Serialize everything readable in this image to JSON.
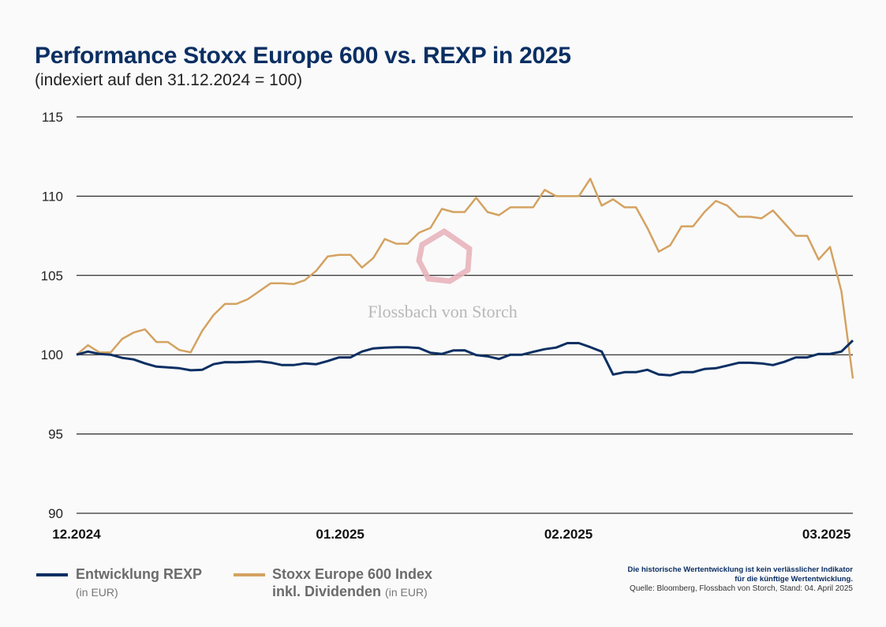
{
  "title": "Performance Stoxx Europe 600 vs. REXP in 2025",
  "subtitle": "(indexiert auf den 31.12.2024 = 100)",
  "watermark": "Flossbach von Storch",
  "colors": {
    "rexp": "#0b2f63",
    "stoxx": "#d4a261",
    "title": "#0b2f63",
    "watermark_logo": "#e8b4bb"
  },
  "chart_data": {
    "type": "line",
    "title": "Performance Stoxx Europe 600 vs. REXP in 2025",
    "subtitle": "(indexiert auf den 31.12.2024 = 100)",
    "ylim": [
      90,
      115
    ],
    "yticks": [
      "90",
      "95",
      "100",
      "105",
      "110",
      "115"
    ],
    "ytick_values": [
      90,
      95,
      100,
      105,
      110,
      115
    ],
    "xticks": [
      {
        "label": "12.2024",
        "index": 0
      },
      {
        "label": "01.2025",
        "index": 22.4
      },
      {
        "label": "02.2025",
        "index": 42.4
      },
      {
        "label": "03.2025",
        "index": 65
      }
    ],
    "grid": true,
    "legend_placement": "bottom",
    "series": [
      {
        "name": "Entwicklung REXP",
        "unit": "(in EUR)",
        "color": "#0b2f63",
        "values": [
          100.0,
          100.2,
          100.05,
          100.0,
          99.8,
          99.7,
          99.45,
          99.25,
          99.2,
          99.15,
          99.02,
          99.05,
          99.4,
          99.53,
          99.52,
          99.55,
          99.58,
          99.5,
          99.35,
          99.35,
          99.45,
          99.4,
          99.6,
          99.83,
          99.83,
          100.2,
          100.4,
          100.45,
          100.47,
          100.47,
          100.42,
          100.12,
          100.05,
          100.27,
          100.28,
          99.98,
          99.9,
          99.73,
          100.0,
          100.0,
          100.18,
          100.35,
          100.45,
          100.73,
          100.73,
          100.48,
          100.2,
          98.75,
          98.9,
          98.9,
          99.05,
          98.75,
          98.7,
          98.9,
          98.9,
          99.1,
          99.15,
          99.32,
          99.49,
          99.49,
          99.45,
          99.35,
          99.55,
          99.83,
          99.83,
          100.05,
          100.05,
          100.2,
          100.9
        ]
      },
      {
        "name": "Stoxx Europe 600 Index inkl. Dividenden",
        "unit": "(in EUR)",
        "color": "#d4a261",
        "values": [
          100.0,
          100.6,
          100.15,
          100.15,
          101.0,
          101.4,
          101.6,
          100.8,
          100.8,
          100.3,
          100.15,
          101.5,
          102.5,
          103.2,
          103.2,
          103.5,
          104.0,
          104.5,
          104.5,
          104.45,
          104.7,
          105.3,
          106.2,
          106.3,
          106.3,
          105.5,
          106.1,
          107.3,
          107.0,
          107.0,
          107.7,
          108.0,
          109.2,
          109.0,
          109.0,
          109.9,
          109.0,
          108.8,
          109.3,
          109.3,
          109.3,
          110.4,
          110.0,
          110.0,
          110.0,
          111.1,
          109.4,
          109.8,
          109.3,
          109.3,
          108.0,
          106.5,
          106.9,
          108.1,
          108.1,
          109.0,
          109.7,
          109.4,
          108.7,
          108.7,
          108.6,
          109.1,
          108.3,
          107.5,
          107.5,
          106.0,
          106.8,
          104.0,
          98.5
        ]
      }
    ]
  },
  "legend": {
    "rexp_label": "Entwicklung REXP",
    "rexp_unit": "(in EUR)",
    "stoxx_label_1": "Stoxx Europe 600 Index",
    "stoxx_label_2": "inkl. Dividenden",
    "stoxx_unit": "(in EUR)"
  },
  "note": {
    "disclaimer_1": "Die historische Wertentwicklung ist kein verlässlicher Indikator",
    "disclaimer_2": "für die künftige Wertentwicklung.",
    "source": "Quelle: Bloomberg, Flossbach von Storch, Stand: 04. April 2025"
  }
}
